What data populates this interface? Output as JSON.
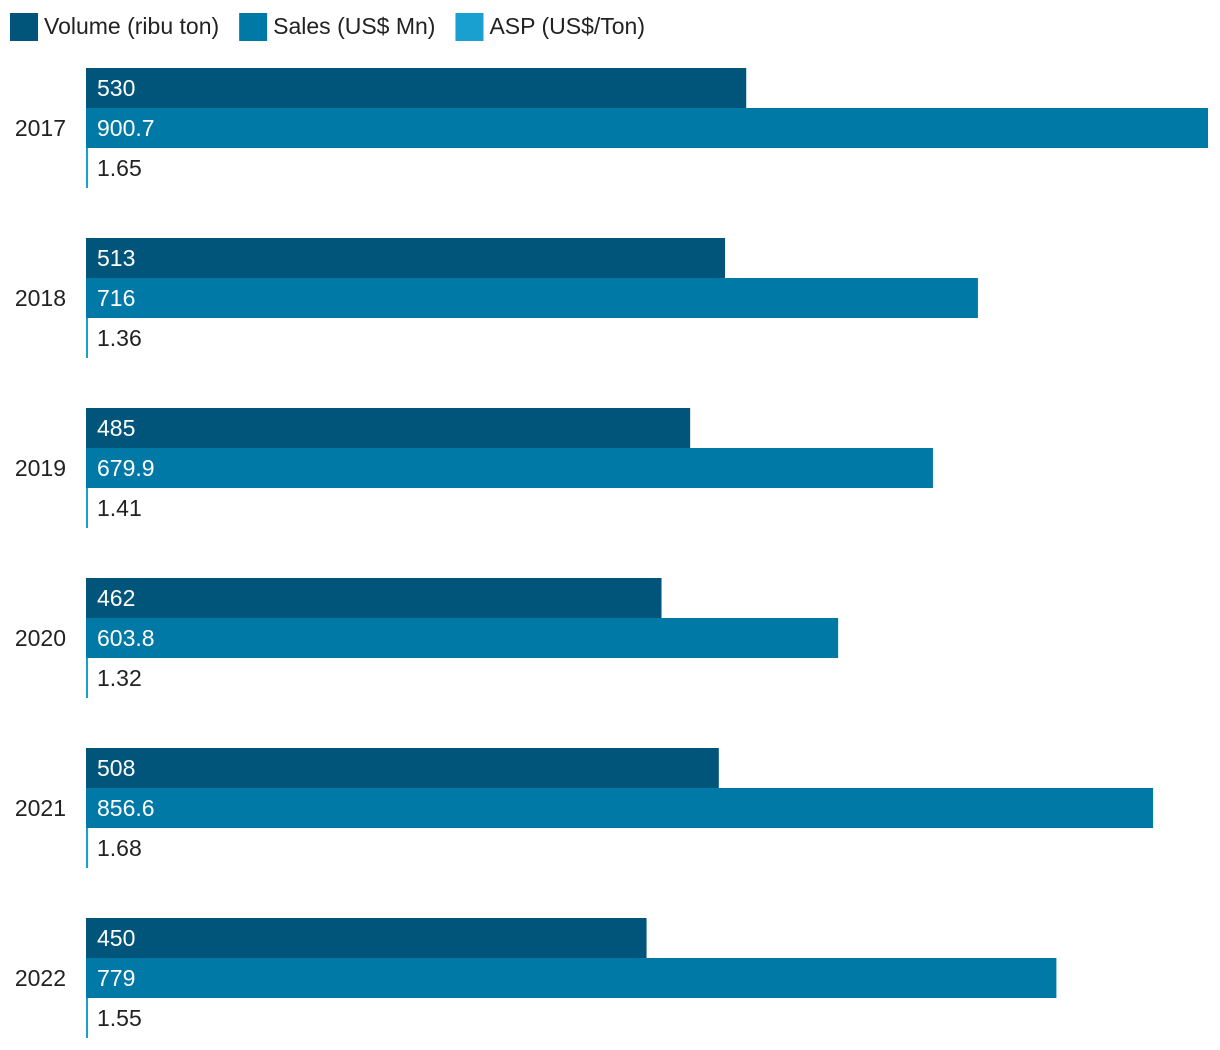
{
  "chart_data": {
    "type": "bar",
    "orientation": "horizontal",
    "categories": [
      "2017",
      "2018",
      "2019",
      "2020",
      "2021",
      "2022"
    ],
    "series": [
      {
        "name": "Volume (ribu ton)",
        "color": "#01557a",
        "label_color": "#ffffff",
        "values": [
          530,
          513,
          485,
          462,
          508,
          450
        ],
        "labels": [
          "530",
          "513",
          "485",
          "462",
          "508",
          "450"
        ]
      },
      {
        "name": "Sales (US$ Mn)",
        "color": "#0079a6",
        "label_color": "#ffffff",
        "values": [
          900.7,
          716,
          679.9,
          603.8,
          856.6,
          779
        ],
        "labels": [
          "900.7",
          "716",
          "679.9",
          "603.8",
          "856.6",
          "779"
        ]
      },
      {
        "name": "ASP (US$/Ton)",
        "color": "#1a9fd1",
        "label_color": "#222222",
        "values": [
          1.65,
          1.36,
          1.41,
          1.32,
          1.68,
          1.55
        ],
        "labels": [
          "1.65",
          "1.36",
          "1.41",
          "1.32",
          "1.68",
          "1.55"
        ]
      }
    ],
    "xlim": [
      0,
      900.7
    ],
    "legend_position": "top-left",
    "grid": false
  }
}
